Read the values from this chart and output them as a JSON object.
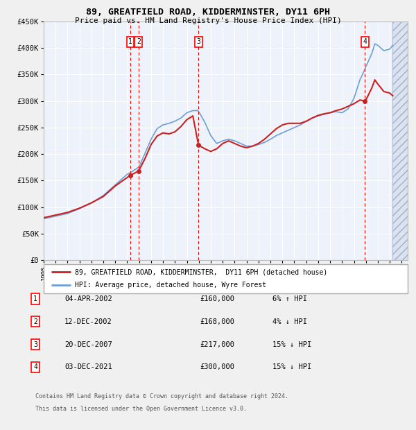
{
  "title": "89, GREATFIELD ROAD, KIDDERMINSTER, DY11 6PH",
  "subtitle": "Price paid vs. HM Land Registry's House Price Index (HPI)",
  "ylim": [
    0,
    450000
  ],
  "xlim_start": 1995.0,
  "xlim_end": 2025.5,
  "plot_bg_color": "#eef2fa",
  "grid_color": "#ffffff",
  "transactions": [
    {
      "date_str": "04-APR-2002",
      "date_num": 2002.26,
      "price": 160000,
      "label": "1",
      "pct": "6%",
      "dir": "↑"
    },
    {
      "date_str": "12-DEC-2002",
      "date_num": 2002.95,
      "price": 168000,
      "label": "2",
      "pct": "4%",
      "dir": "↓"
    },
    {
      "date_str": "20-DEC-2007",
      "date_num": 2007.97,
      "price": 217000,
      "label": "3",
      "pct": "15%",
      "dir": "↓"
    },
    {
      "date_str": "03-DEC-2021",
      "date_num": 2021.92,
      "price": 300000,
      "label": "4",
      "pct": "15%",
      "dir": "↓"
    }
  ],
  "legend_property": "89, GREATFIELD ROAD, KIDDERMINSTER,  DY11 6PH (detached house)",
  "legend_hpi": "HPI: Average price, detached house, Wyre Forest",
  "footer_line1": "Contains HM Land Registry data © Crown copyright and database right 2024.",
  "footer_line2": "This data is licensed under the Open Government Licence v3.0."
}
